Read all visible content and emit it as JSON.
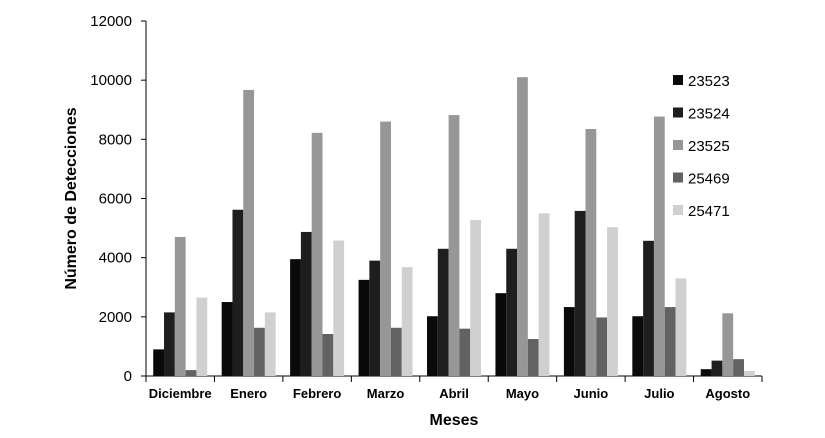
{
  "chart_data": {
    "type": "bar",
    "xlabel": "Meses",
    "ylabel": "Número de Detecciones",
    "ylim": [
      0,
      12000
    ],
    "yticks": [
      0,
      2000,
      4000,
      6000,
      8000,
      10000,
      12000
    ],
    "grid": false,
    "legend_position": "right",
    "categories": [
      "Diciembre",
      "Enero",
      "Febrero",
      "Marzo",
      "Abril",
      "Mayo",
      "Junio",
      "Julio",
      "Agosto"
    ],
    "series": [
      {
        "name": "23523",
        "color": "#0a0a0a",
        "values": [
          900,
          2500,
          3950,
          3250,
          2020,
          2800,
          2330,
          2020,
          230
        ]
      },
      {
        "name": "23524",
        "color": "#1e1e1e",
        "values": [
          2150,
          5620,
          4870,
          3900,
          4300,
          4300,
          5580,
          4570,
          520
        ]
      },
      {
        "name": "23525",
        "color": "#979797",
        "values": [
          4700,
          9670,
          8220,
          8600,
          8820,
          10100,
          8350,
          8770,
          2120
        ]
      },
      {
        "name": "25469",
        "color": "#626262",
        "values": [
          200,
          1630,
          1420,
          1630,
          1600,
          1250,
          1980,
          2330,
          570
        ]
      },
      {
        "name": "25471",
        "color": "#d0d0d0",
        "values": [
          2650,
          2150,
          4580,
          3680,
          5270,
          5500,
          5030,
          3300,
          170
        ]
      }
    ]
  }
}
